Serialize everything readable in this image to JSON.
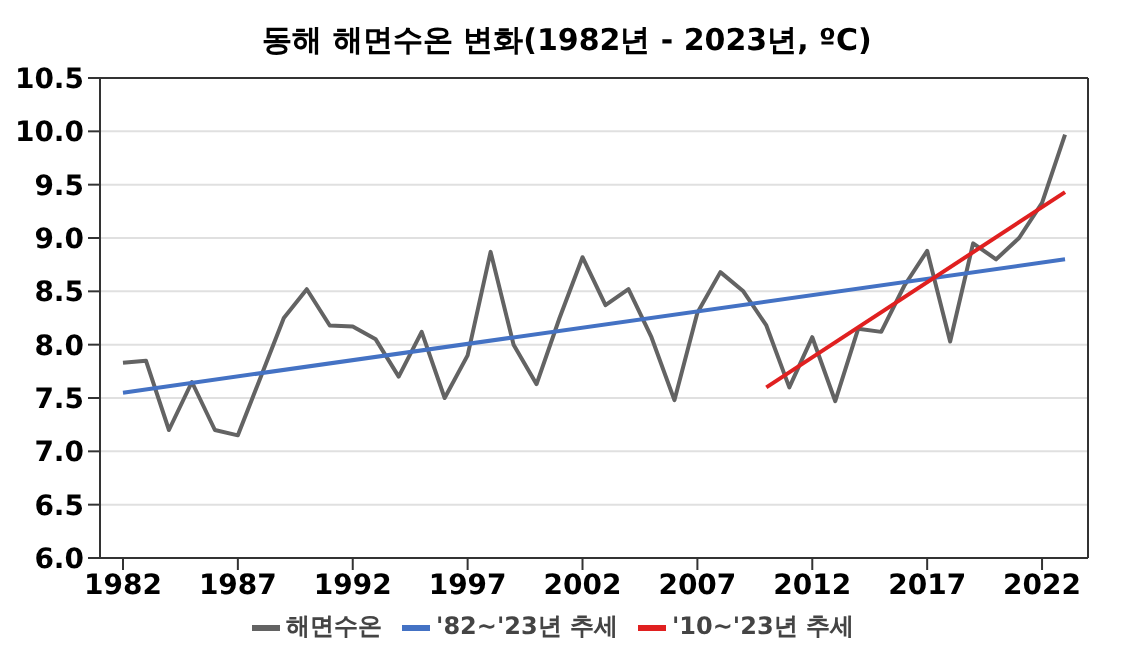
{
  "chart_data": {
    "type": "line",
    "title": "동해 해면수온 변화(1982년 - 2023년, ºC)",
    "x": [
      1982,
      1983,
      1984,
      1985,
      1986,
      1987,
      1988,
      1989,
      1990,
      1991,
      1992,
      1993,
      1994,
      1995,
      1996,
      1997,
      1998,
      1999,
      2000,
      2001,
      2002,
      2003,
      2004,
      2005,
      2006,
      2007,
      2008,
      2009,
      2010,
      2011,
      2012,
      2013,
      2014,
      2015,
      2016,
      2017,
      2018,
      2019,
      2020,
      2021,
      2022,
      2023
    ],
    "series": [
      {
        "name": "해면수온",
        "color": "#636363",
        "values": [
          7.83,
          7.85,
          7.2,
          7.65,
          7.2,
          7.15,
          7.7,
          8.25,
          8.52,
          8.18,
          8.17,
          8.05,
          7.7,
          8.12,
          7.5,
          7.9,
          8.87,
          8.0,
          7.63,
          8.25,
          8.82,
          8.37,
          8.52,
          8.07,
          7.48,
          8.3,
          8.68,
          8.5,
          8.18,
          7.6,
          8.07,
          7.47,
          8.15,
          8.12,
          8.55,
          8.88,
          8.03,
          8.95,
          8.8,
          9.0,
          9.33,
          9.97
        ]
      },
      {
        "name": "'82~'23년 추세",
        "color": "#4472c4",
        "x": [
          1982,
          2023
        ],
        "values": [
          7.55,
          8.8
        ]
      },
      {
        "name": "'10~'23년 추세",
        "color": "#e02020",
        "x": [
          2010,
          2023
        ],
        "values": [
          7.6,
          9.43
        ]
      }
    ],
    "xlim": [
      1981,
      2024
    ],
    "xticks": [
      1982,
      1987,
      1992,
      1997,
      2002,
      2007,
      2012,
      2017,
      2022
    ],
    "ylim": [
      6.0,
      10.5
    ],
    "yticks": [
      {
        "value": 6,
        "label": "6.0"
      },
      {
        "value": 6.5,
        "label": "6.5"
      },
      {
        "value": 7,
        "label": "7.0"
      },
      {
        "value": 7.5,
        "label": "7.5"
      },
      {
        "value": 8,
        "label": "8.0"
      },
      {
        "value": 8.5,
        "label": "8.5"
      },
      {
        "value": 9,
        "label": "9.0"
      },
      {
        "value": 9.5,
        "label": "9.5"
      },
      {
        "value": 10,
        "label": "10.0"
      },
      {
        "value": 10.5,
        "label": "10.5"
      }
    ],
    "grid": "y",
    "legend": "bottom",
    "marker": "none",
    "line_style": "solid"
  }
}
